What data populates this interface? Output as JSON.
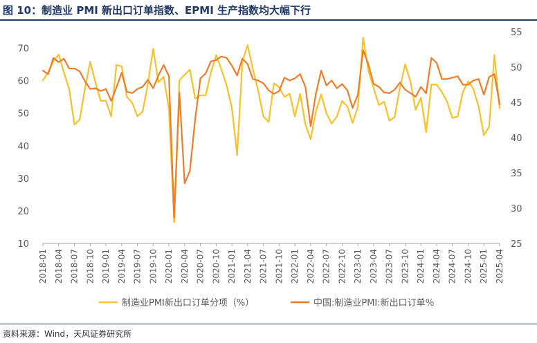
{
  "header": {
    "title": "图 10：制造业 PMI 新出口订单指数、EPMI 生产指数均大幅下行"
  },
  "footer": {
    "source": "资料来源：Wind，天风证券研究所"
  },
  "colors": {
    "series_left": "#F7C12B",
    "series_right": "#EE7D2A",
    "title": "#1F3864",
    "axis": "#A6A6A6"
  },
  "chart_data": {
    "type": "line",
    "title": "",
    "x": [
      "2018-01",
      "2018-02",
      "2018-03",
      "2018-04",
      "2018-05",
      "2018-06",
      "2018-07",
      "2018-08",
      "2018-09",
      "2018-10",
      "2018-11",
      "2018-12",
      "2019-01",
      "2019-02",
      "2019-03",
      "2019-04",
      "2019-05",
      "2019-06",
      "2019-07",
      "2019-08",
      "2019-09",
      "2019-10",
      "2019-11",
      "2019-12",
      "2020-01",
      "2020-02",
      "2020-03",
      "2020-04",
      "2020-05",
      "2020-06",
      "2020-07",
      "2020-08",
      "2020-09",
      "2020-10",
      "2020-11",
      "2020-12",
      "2021-01",
      "2021-02",
      "2021-03",
      "2021-04",
      "2021-05",
      "2021-06",
      "2021-07",
      "2021-08",
      "2021-09",
      "2021-10",
      "2021-11",
      "2021-12",
      "2022-01",
      "2022-02",
      "2022-03",
      "2022-04",
      "2022-05",
      "2022-06",
      "2022-07",
      "2022-08",
      "2022-09",
      "2022-10",
      "2022-11",
      "2022-12",
      "2023-01",
      "2023-02",
      "2023-03",
      "2023-04",
      "2023-05",
      "2023-06",
      "2023-07",
      "2023-08",
      "2023-09",
      "2023-10",
      "2023-11",
      "2023-12",
      "2024-01",
      "2024-02",
      "2024-03",
      "2024-04",
      "2024-05",
      "2024-06",
      "2024-07",
      "2024-08",
      "2024-09",
      "2024-10",
      "2024-11",
      "2024-12",
      "2025-01",
      "2025-02",
      "2025-03",
      "2025-04"
    ],
    "x_tick_labels": [
      "2018-01",
      "2018-04",
      "2018-07",
      "2018-10",
      "2019-01",
      "2019-04",
      "2019-07",
      "2019-10",
      "2020-01",
      "2020-04",
      "2020-07",
      "2020-10",
      "2021-01",
      "2021-04",
      "2021-07",
      "2021-10",
      "2022-01",
      "2022-04",
      "2022-07",
      "2022-10",
      "2023-01",
      "2023-04",
      "2023-07",
      "2023-10",
      "2024-01",
      "2024-04",
      "2024-07",
      "2024-10",
      "2025-01",
      "2025-04"
    ],
    "y_left": {
      "ylim": [
        10,
        75
      ],
      "ticks": [
        10,
        20,
        30,
        40,
        50,
        60,
        70
      ]
    },
    "y_right": {
      "ylim": [
        25,
        55
      ],
      "ticks": [
        25,
        30,
        35,
        40,
        45,
        50,
        55
      ]
    },
    "series": [
      {
        "name": "制造业PMI新出口订单分项（%）",
        "axis": "left",
        "values": [
          60.1,
          62.5,
          66.0,
          68.0,
          62.5,
          57.5,
          46.5,
          48.0,
          57.5,
          65.8,
          59.5,
          53.8,
          53.8,
          49.0,
          64.8,
          64.4,
          55.0,
          53.2,
          49.0,
          50.5,
          59.0,
          69.8,
          59.5,
          61.2,
          51.5,
          16.5,
          60.1,
          61.8,
          63.4,
          54.5,
          55.5,
          55.5,
          62.5,
          67.8,
          63.5,
          58.5,
          51.5,
          37.1,
          66.0,
          70.9,
          63.5,
          57.0,
          49.0,
          47.3,
          59.2,
          58.0,
          55.0,
          56.0,
          49.0,
          55.9,
          46.6,
          42.0,
          50.5,
          55.8,
          50.0,
          46.8,
          49.0,
          53.8,
          52.0,
          47.0,
          52.0,
          73.2,
          63.0,
          57.7,
          52.5,
          53.5,
          47.7,
          48.8,
          57.8,
          65.0,
          59.8,
          51.0,
          54.8,
          44.2,
          58.8,
          58.8,
          56.5,
          53.5,
          48.5,
          49.0,
          56.5,
          59.8,
          57.5,
          52.0,
          43.2,
          45.8,
          67.9,
          51.5
        ]
      },
      {
        "name": "中国:制造业PMI:新出口订单％",
        "axis": "right",
        "values": [
          49.5,
          49.0,
          51.3,
          50.7,
          51.2,
          49.8,
          49.8,
          49.4,
          48.0,
          46.9,
          47.0,
          46.6,
          46.9,
          45.2,
          47.1,
          49.2,
          46.5,
          46.3,
          46.9,
          47.2,
          48.2,
          47.0,
          48.8,
          50.3,
          48.7,
          28.7,
          46.4,
          33.5,
          35.3,
          42.6,
          48.4,
          49.1,
          50.8,
          51.0,
          51.5,
          51.3,
          50.2,
          48.8,
          51.2,
          50.4,
          48.3,
          48.1,
          47.7,
          46.7,
          46.2,
          46.6,
          48.5,
          48.1,
          48.4,
          49.0,
          47.2,
          41.6,
          46.2,
          49.5,
          47.4,
          48.1,
          47.0,
          47.6,
          46.7,
          44.2,
          46.1,
          52.4,
          50.4,
          47.6,
          47.2,
          46.4,
          46.3,
          46.8,
          47.8,
          46.8,
          46.3,
          45.8,
          47.2,
          46.3,
          51.3,
          50.6,
          48.3,
          48.3,
          48.5,
          48.7,
          47.5,
          47.5,
          48.1,
          48.3,
          46.1,
          48.6,
          49.0,
          44.7
        ]
      }
    ],
    "legend": {
      "position": "bottom"
    },
    "grid": false
  }
}
